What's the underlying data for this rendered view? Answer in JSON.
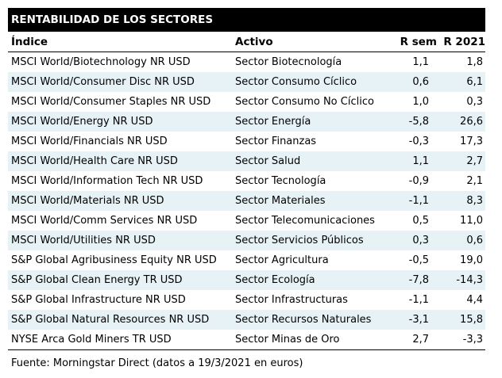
{
  "title_bar": {
    "label": "RENTABILIDAD DE LOS SECTORES"
  },
  "table": {
    "columns": [
      "Índice",
      "Activo",
      "R sem",
      "R 2021"
    ],
    "rows": [
      {
        "indice": "MSCI World/Biotechnology NR USD",
        "activo": "Sector Biotecnología",
        "r_sem": "1,1",
        "r_2021": "1,8"
      },
      {
        "indice": "MSCI World/Consumer Disc NR USD",
        "activo": "Sector Consumo Cíclico",
        "r_sem": "0,6",
        "r_2021": "6,1"
      },
      {
        "indice": "MSCI World/Consumer Staples NR USD",
        "activo": "Sector Consumo No Cíclico",
        "r_sem": "1,0",
        "r_2021": "0,3"
      },
      {
        "indice": "MSCI World/Energy NR USD",
        "activo": "Sector Energía",
        "r_sem": "-5,8",
        "r_2021": "26,6"
      },
      {
        "indice": "MSCI World/Financials NR USD",
        "activo": "Sector Finanzas",
        "r_sem": "-0,3",
        "r_2021": "17,3"
      },
      {
        "indice": "MSCI World/Health Care NR USD",
        "activo": "Sector Salud",
        "r_sem": "1,1",
        "r_2021": "2,7"
      },
      {
        "indice": "MSCI World/Information Tech NR USD",
        "activo": "Sector Tecnología",
        "r_sem": "-0,9",
        "r_2021": "2,1"
      },
      {
        "indice": "MSCI World/Materials NR USD",
        "activo": "Sector Materiales",
        "r_sem": "-1,1",
        "r_2021": "8,3"
      },
      {
        "indice": "MSCI World/Comm Services NR USD",
        "activo": "Sector Telecomunicaciones",
        "r_sem": "0,5",
        "r_2021": "11,0"
      },
      {
        "indice": "MSCI World/Utilities NR USD",
        "activo": "Sector Servicios Públicos",
        "r_sem": "0,3",
        "r_2021": "0,6"
      },
      {
        "indice": "S&P Global Agribusiness Equity NR USD",
        "activo": "Sector Agricultura",
        "r_sem": "-0,5",
        "r_2021": "19,0"
      },
      {
        "indice": "S&P Global Clean Energy TR USD",
        "activo": "Sector Ecología",
        "r_sem": "-7,8",
        "r_2021": "-14,3"
      },
      {
        "indice": "S&P Global Infrastructure NR USD",
        "activo": "Sector Infrastructuras",
        "r_sem": "-1,1",
        "r_2021": "4,4"
      },
      {
        "indice": "S&P Global Natural Resources NR USD",
        "activo": "Sector Recursos Naturales",
        "r_sem": "-3,1",
        "r_2021": "15,8"
      },
      {
        "indice": "NYSE Arca Gold Miners TR USD",
        "activo": "Sector Minas de Oro",
        "r_sem": "2,7",
        "r_2021": "-3,3"
      }
    ]
  },
  "footer": {
    "source": "Fuente: Morningstar Direct (datos a 19/3/2021 en euros)"
  },
  "colors": {
    "title_bg": "#000000",
    "title_text": "#ffffff",
    "stripe_row": "#e7f2f7",
    "border": "#000000",
    "text": "#000000"
  }
}
